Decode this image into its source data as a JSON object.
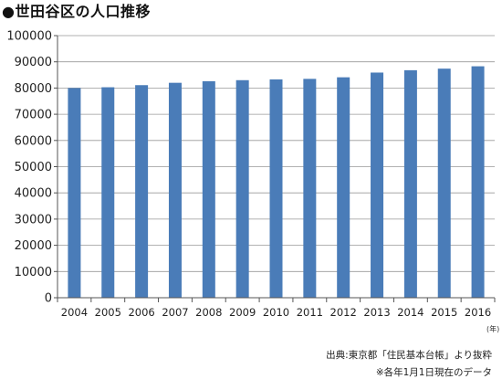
{
  "chart_data": {
    "type": "bar",
    "title": "●世田谷区の人口推移",
    "categories": [
      "2004",
      "2005",
      "2006",
      "2007",
      "2008",
      "2009",
      "2010",
      "2011",
      "2012",
      "2013",
      "2014",
      "2015",
      "2016"
    ],
    "series": [
      {
        "values": [
          80000,
          80300,
          81100,
          82000,
          82600,
          83000,
          83300,
          83500,
          84100,
          85900,
          86800,
          87400,
          88300
        ]
      }
    ],
    "ylim": [
      0,
      100000
    ],
    "yticks": [
      "0",
      "10000",
      "20000",
      "30000",
      "40000",
      "50000",
      "60000",
      "70000",
      "80000",
      "90000",
      "100000"
    ],
    "xlabel": "(年)",
    "ylabel": "",
    "grid": true,
    "colors": {
      "bar": "#4a7cb8",
      "grid": "#999999",
      "axis": "#555555",
      "text": "#222222"
    },
    "source": "出典:東京都「住民基本台帳」より抜粋",
    "note": "※各年1月1日現在のデータ"
  }
}
